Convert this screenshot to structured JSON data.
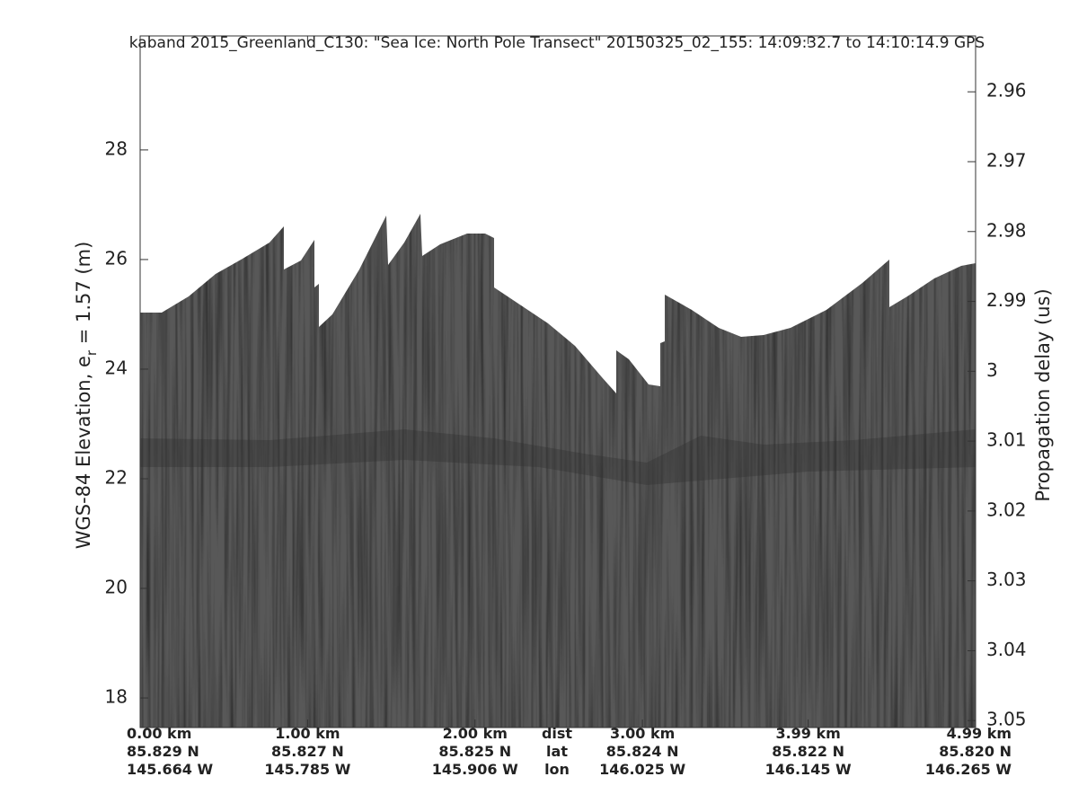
{
  "chart_data": {
    "type": "echogram",
    "title": "kaband 2015_Greenland_C130: \"Sea Ice: North Pole Transect\"  20150325_02_155: 14:09:32.7 to 14:10:14.9 GPS",
    "y_label": {
      "prefix": "WGS-84 Elevation, e",
      "subscript": "r",
      "suffix": " = 1.57 (m)"
    },
    "y2_label": "Propagation delay (us)",
    "row_labels": [
      "dist",
      "lat",
      "lon"
    ],
    "xlim": [
      0,
      4.99
    ],
    "xticks": [
      {
        "value": 0,
        "label": "0.00 km",
        "lat": "85.829 N",
        "lon": "145.664 W"
      },
      {
        "value": 1.0,
        "label": "1.00 km",
        "lat": "85.827 N",
        "lon": "145.785 W"
      },
      {
        "value": 2.0,
        "label": "2.00 km",
        "lat": "85.825 N",
        "lon": "145.906 W"
      },
      {
        "value": 3.0,
        "label": "3.00 km",
        "lat": "85.824 N",
        "lon": "146.025 W"
      },
      {
        "value": 3.99,
        "label": "3.99 km",
        "lat": "85.822 N",
        "lon": "146.145 W"
      },
      {
        "value": 4.99,
        "label": "4.99 km",
        "lat": "85.820 N",
        "lon": "146.265 W"
      }
    ],
    "ylim": [
      17.46,
      30.08
    ],
    "yticks": [
      18,
      20,
      22,
      24,
      26,
      28
    ],
    "y2lim": [
      3.051,
      2.952
    ],
    "y2ticks": [
      2.96,
      2.97,
      2.98,
      2.99,
      3,
      3.01,
      3.02,
      3.03,
      3.04,
      3.05
    ]
  }
}
